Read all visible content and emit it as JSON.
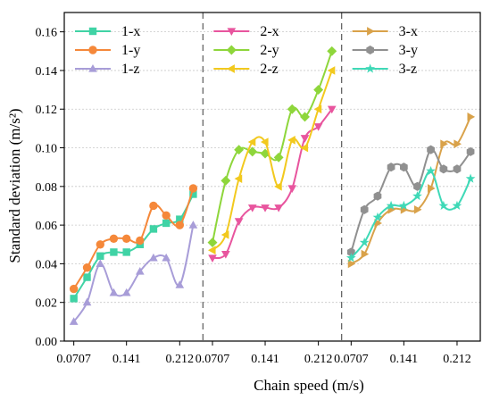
{
  "chart_data": {
    "type": "line",
    "xlabel": "Chain speed (m/s)",
    "ylabel": "Standard deviation (m/s²)",
    "ylim": [
      0,
      0.17
    ],
    "yticks": [
      "0.00",
      "0.02",
      "0.04",
      "0.06",
      "0.08",
      "0.10",
      "0.12",
      "0.14",
      "0.16"
    ],
    "xtick_labels": [
      "0.0707",
      "0.141",
      "0.212"
    ],
    "grid": "horizontal dashed",
    "panels": [
      {
        "x": [
          0.0707,
          0.0884,
          0.106,
          0.124,
          0.141,
          0.159,
          0.177,
          0.194,
          0.212,
          0.23
        ],
        "series": [
          {
            "name": "1-x",
            "color": "#40d3a5",
            "marker": "square",
            "values": [
              0.022,
              0.033,
              0.044,
              0.046,
              0.046,
              0.05,
              0.058,
              0.061,
              0.063,
              0.076
            ]
          },
          {
            "name": "1-y",
            "color": "#f5883a",
            "marker": "circle",
            "values": [
              0.027,
              0.038,
              0.05,
              0.053,
              0.053,
              0.052,
              0.07,
              0.065,
              0.06,
              0.079
            ]
          },
          {
            "name": "1-z",
            "color": "#a89dd8",
            "marker": "triangle-up",
            "values": [
              0.01,
              0.02,
              0.04,
              0.025,
              0.025,
              0.036,
              0.043,
              0.043,
              0.029,
              0.06
            ]
          }
        ]
      },
      {
        "x": [
          0.0707,
          0.0884,
          0.106,
          0.124,
          0.141,
          0.159,
          0.177,
          0.194,
          0.212,
          0.23
        ],
        "series": [
          {
            "name": "2-x",
            "color": "#e8559e",
            "marker": "triangle-down",
            "values": [
              0.043,
              0.045,
              0.062,
              0.069,
              0.069,
              0.069,
              0.079,
              0.105,
              0.111,
              0.12
            ]
          },
          {
            "name": "2-y",
            "color": "#8ed63b",
            "marker": "diamond",
            "values": [
              0.051,
              0.083,
              0.099,
              0.098,
              0.097,
              0.095,
              0.12,
              0.116,
              0.13,
              0.15
            ]
          },
          {
            "name": "2-z",
            "color": "#f2c91e",
            "marker": "triangle-left",
            "values": [
              0.047,
              0.055,
              0.084,
              0.103,
              0.103,
              0.08,
              0.104,
              0.1,
              0.12,
              0.14
            ]
          }
        ]
      },
      {
        "x": [
          0.0707,
          0.0884,
          0.106,
          0.124,
          0.141,
          0.159,
          0.177,
          0.194,
          0.212,
          0.23
        ],
        "series": [
          {
            "name": "3-x",
            "color": "#d9a24a",
            "marker": "triangle-right",
            "values": [
              0.04,
              0.045,
              0.061,
              0.068,
              0.068,
              0.068,
              0.079,
              0.102,
              0.102,
              0.116
            ]
          },
          {
            "name": "3-y",
            "color": "#909090",
            "marker": "hexagon",
            "values": [
              0.046,
              0.068,
              0.075,
              0.09,
              0.09,
              0.08,
              0.099,
              0.089,
              0.089,
              0.098
            ]
          },
          {
            "name": "3-z",
            "color": "#3fd9b7",
            "marker": "star",
            "values": [
              0.043,
              0.051,
              0.064,
              0.07,
              0.07,
              0.075,
              0.088,
              0.07,
              0.07,
              0.084
            ]
          }
        ]
      }
    ]
  }
}
